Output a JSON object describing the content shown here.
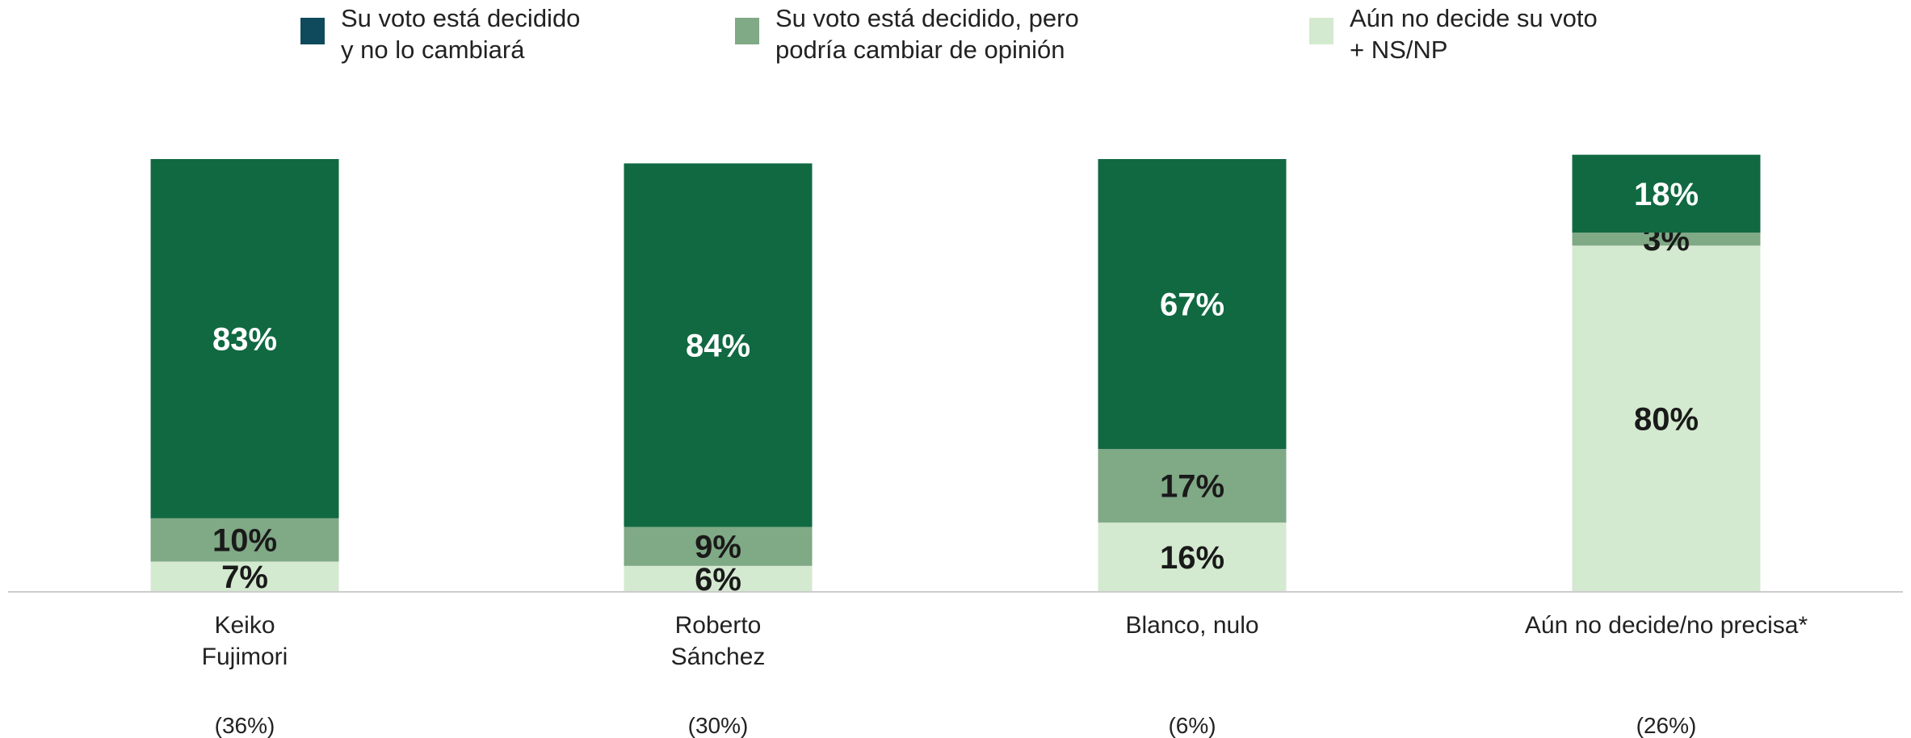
{
  "chart_data": {
    "type": "bar",
    "stacked": true,
    "percent": true,
    "ylim": [
      0,
      100
    ],
    "grid": false,
    "legend_position": "top",
    "categories": [
      {
        "label_lines": [
          "Keiko",
          "Fujimori"
        ],
        "total": "(36%)"
      },
      {
        "label_lines": [
          "Roberto",
          "Sánchez"
        ],
        "total": "(30%)"
      },
      {
        "label_lines": [
          "Blanco, nulo"
        ],
        "total": "(6%)"
      },
      {
        "label_lines": [
          "Aún no decide/no precisa*"
        ],
        "total": "(26%)"
      }
    ],
    "series": [
      {
        "name_lines": [
          "Aún no decide su voto",
          "+ NS/NP"
        ],
        "color": "#d4ead0",
        "legend_color": "#d4ead0",
        "label_color": "#1a1a1a",
        "values": [
          7,
          6,
          16,
          80
        ]
      },
      {
        "name_lines": [
          "Su voto está decidido, pero",
          "podría cambiar de opinión"
        ],
        "color": "#80a986",
        "legend_color": "#80a986",
        "label_color": "#1a1a1a",
        "values": [
          10,
          9,
          17,
          3
        ]
      },
      {
        "name_lines": [
          "Su voto está decidido",
          "y no lo cambiará"
        ],
        "color": "#106941",
        "legend_color": "#0f4a5c",
        "label_color": "#ffffff",
        "values": [
          83,
          84,
          67,
          18
        ]
      }
    ],
    "legend_order": [
      2,
      1,
      0
    ]
  }
}
